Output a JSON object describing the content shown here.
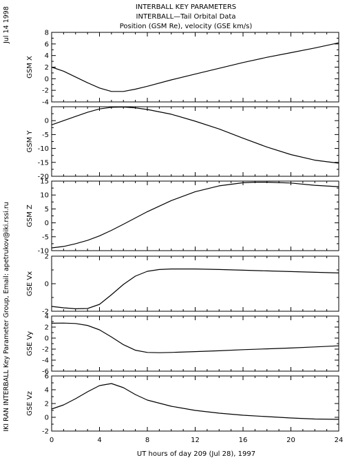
{
  "header": {
    "title1": "INTERBALL KEY PARAMETERS",
    "title2": "INTERBALL—Tail Orbital Data",
    "title3": "Position (GSM Re), velocity (GSE km/s)"
  },
  "side_left": {
    "date": "Jul 14 1998",
    "credit": "IKI RAN INTERBALL Key Parameter Group, Email: apetrukov@iki.rssi.ru"
  },
  "chart_data": {
    "type": "line",
    "xlabel": "UT hours of day 209 (Jul 28), 1997",
    "xlim": [
      0,
      24
    ],
    "xticks": [
      0,
      4,
      8,
      12,
      16,
      20,
      24
    ],
    "panels": [
      {
        "ylabel": "GSM X",
        "ylim": [
          -4,
          8
        ],
        "yticks": [
          -4,
          -2,
          0,
          2,
          4,
          6,
          8
        ],
        "series": [
          {
            "x": [
              0,
              1,
              2,
              3,
              4,
              5,
              6,
              7,
              8,
              10,
              12,
              14,
              16,
              18,
              20,
              22,
              24
            ],
            "y": [
              2.0,
              1.3,
              0.3,
              -0.7,
              -1.6,
              -2.2,
              -2.2,
              -1.8,
              -1.3,
              -0.2,
              0.8,
              1.8,
              2.8,
              3.7,
              4.5,
              5.3,
              6.2
            ]
          }
        ]
      },
      {
        "ylabel": "GSM Y",
        "ylim": [
          -20,
          5
        ],
        "yticks": [
          -20,
          -15,
          -10,
          -5,
          0
        ],
        "series": [
          {
            "x": [
              0,
              1,
              2,
              3,
              4,
              5,
              6,
              7,
              8,
              10,
              12,
              14,
              16,
              18,
              20,
              22,
              24
            ],
            "y": [
              -1.5,
              0.0,
              1.5,
              3.0,
              4.2,
              4.8,
              4.9,
              4.6,
              4.0,
              2.3,
              -0.2,
              -3.0,
              -6.3,
              -9.5,
              -12.2,
              -14.2,
              -15.3
            ]
          }
        ]
      },
      {
        "ylabel": "GSM Z",
        "ylim": [
          -10,
          15
        ],
        "yticks": [
          -10,
          -5,
          0,
          5,
          10,
          15
        ],
        "series": [
          {
            "x": [
              0,
              1,
              2,
              3,
              4,
              5,
              6,
              8,
              10,
              12,
              14,
              16,
              17,
              18,
              20,
              22,
              24
            ],
            "y": [
              -9.0,
              -8.5,
              -7.5,
              -6.3,
              -4.7,
              -2.7,
              -0.5,
              4.0,
              8.0,
              11.2,
              13.3,
              14.4,
              14.6,
              14.6,
              14.3,
              13.5,
              13.0
            ]
          }
        ]
      },
      {
        "ylabel": "GSE Vx",
        "ylim": [
          -2,
          2
        ],
        "yticks": [
          -2,
          0,
          2
        ],
        "series": [
          {
            "x": [
              0,
              1,
              2,
              3,
              4,
              5,
              6,
              7,
              8,
              9,
              10,
              12,
              14,
              16,
              18,
              20,
              22,
              24
            ],
            "y": [
              -1.65,
              -1.75,
              -1.82,
              -1.8,
              -1.5,
              -0.8,
              -0.05,
              0.55,
              0.9,
              1.03,
              1.07,
              1.07,
              1.03,
              0.98,
              0.93,
              0.88,
              0.83,
              0.78
            ]
          }
        ]
      },
      {
        "ylabel": "GSE Vy",
        "ylim": [
          -6,
          4
        ],
        "yticks": [
          -6,
          -4,
          -2,
          0,
          2,
          4
        ],
        "series": [
          {
            "x": [
              0,
              1,
              2,
              3,
              4,
              5,
              6,
              7,
              8,
              9,
              10,
              12,
              14,
              16,
              18,
              20,
              22,
              24
            ],
            "y": [
              2.7,
              2.72,
              2.65,
              2.3,
              1.5,
              0.2,
              -1.2,
              -2.2,
              -2.6,
              -2.65,
              -2.6,
              -2.45,
              -2.3,
              -2.1,
              -1.95,
              -1.8,
              -1.6,
              -1.4
            ]
          }
        ]
      },
      {
        "ylabel": "GSE Vz",
        "ylim": [
          -2,
          6
        ],
        "yticks": [
          -2,
          0,
          2,
          4,
          6
        ],
        "series": [
          {
            "x": [
              0,
              1,
              2,
              3,
              4,
              5,
              6,
              7,
              8,
              10,
              12,
              14,
              16,
              18,
              20,
              22,
              24
            ],
            "y": [
              1.2,
              1.8,
              2.7,
              3.7,
              4.6,
              4.9,
              4.3,
              3.3,
              2.5,
              1.6,
              1.0,
              0.6,
              0.3,
              0.1,
              -0.1,
              -0.25,
              -0.3
            ]
          }
        ]
      }
    ]
  }
}
